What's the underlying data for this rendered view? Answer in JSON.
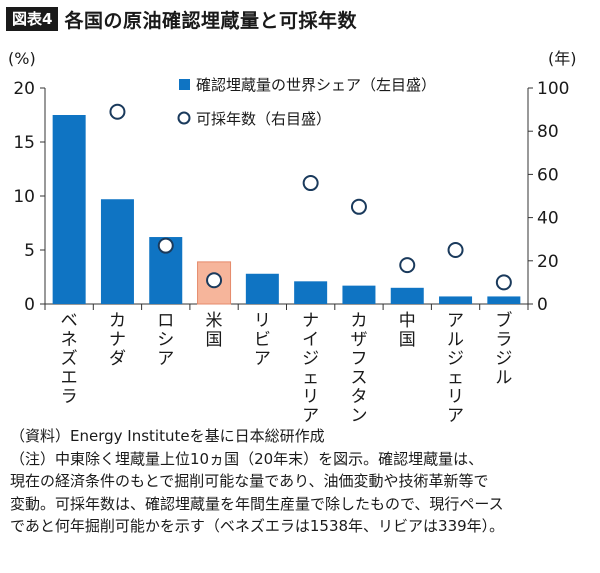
{
  "figure": {
    "badge": "図表4",
    "title": "各国の原油確認埋蔵量と可採年数"
  },
  "chart_data": {
    "type": "bar",
    "categories": [
      "ベネズエラ",
      "カナダ",
      "ロシア",
      "米国",
      "リビア",
      "ナイジェリア",
      "カザフスタン",
      "中国",
      "アルジェリア",
      "ブラジル"
    ],
    "series": [
      {
        "name": "確認埋蔵量の世界シェア（左目盛）",
        "kind": "bar",
        "axis": "left",
        "values": [
          17.5,
          9.7,
          6.2,
          3.9,
          2.8,
          2.1,
          1.7,
          1.5,
          0.7,
          0.7
        ]
      },
      {
        "name": "可採年数（右目盛）",
        "kind": "scatter",
        "axis": "right",
        "values": [
          null,
          89,
          27,
          11,
          null,
          56,
          45,
          18,
          25,
          10
        ]
      }
    ],
    "left_axis": {
      "unit": "(%)",
      "ylim": [
        0,
        20
      ],
      "ticks": [
        0,
        5,
        10,
        15,
        20
      ]
    },
    "right_axis": {
      "unit": "(年)",
      "ylim": [
        0,
        100
      ],
      "ticks": [
        0,
        20,
        40,
        60,
        80,
        100
      ]
    },
    "highlight_category": "米国",
    "colors": {
      "bar": "#0f74c3",
      "highlight_bar": "#f6b59b",
      "highlight_edge": "#e58a6b",
      "marker_edge": "#1a3a5c"
    },
    "legend_position": "top-right",
    "grid": false
  },
  "notes": {
    "source": "（資料）Energy Instituteを基に日本総研作成",
    "lines": [
      "（注）中東除く埋蔵量上位10ヵ国（20年末）を図示。確認埋蔵量は、",
      "現在の経済条件のもとで掘削可能な量であり、油価変動や技術革新等で",
      "変動。可採年数は、確認埋蔵量を年間生産量で除したもので、現行ペース",
      "であと何年掘削可能かを示す（ベネズエラは1538年、リビアは339年）。"
    ]
  }
}
